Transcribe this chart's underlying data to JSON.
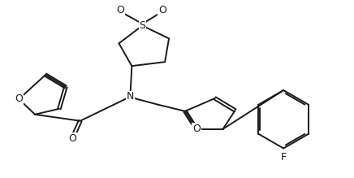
{
  "bg_color": "#ffffff",
  "line_color": "#1a1a1a",
  "line_width": 1.4,
  "figsize": [
    4.36,
    2.19
  ],
  "dpi": 100,
  "xlim": [
    0,
    4.36
  ],
  "ylim": [
    0,
    2.19
  ]
}
